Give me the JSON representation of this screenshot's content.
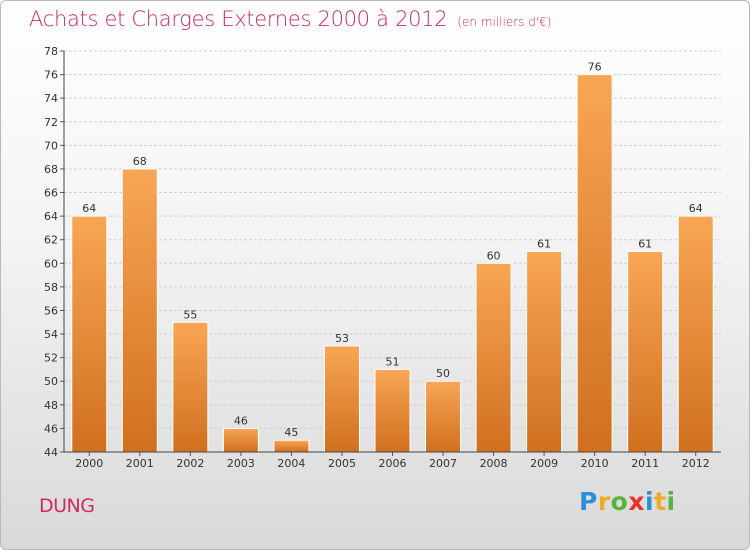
{
  "title": "Achats et Charges Externes 2000 à 2012",
  "title_unit": "(en milliers d'€)",
  "commune": "DUNG",
  "logo": {
    "text": "Proxiti",
    "letters": [
      "P",
      "r",
      "o",
      "x",
      "i",
      "t",
      "i"
    ],
    "colors": [
      "#2c8fd6",
      "#f0a82a",
      "#5ab33a",
      "#e8312a",
      "#2c8fd6",
      "#f0a82a",
      "#5ab33a"
    ]
  },
  "colors": {
    "title": "#d02a5e",
    "bar_top": "#f8a655",
    "bar_bottom": "#d0701f"
  },
  "chart_data": {
    "type": "bar",
    "categories": [
      "2000",
      "2001",
      "2002",
      "2003",
      "2004",
      "2005",
      "2006",
      "2007",
      "2008",
      "2009",
      "2010",
      "2011",
      "2012"
    ],
    "values": [
      64,
      68,
      55,
      46,
      45,
      53,
      51,
      50,
      60,
      61,
      76,
      61,
      64
    ],
    "title": "Achats et Charges Externes 2000 à 2012",
    "xlabel": "",
    "ylabel": "",
    "ylim": [
      44,
      78
    ],
    "yticks": [
      44,
      46,
      48,
      50,
      52,
      54,
      56,
      58,
      60,
      62,
      64,
      66,
      68,
      70,
      72,
      74,
      76,
      78
    ],
    "grid": true,
    "data_labels": true
  }
}
